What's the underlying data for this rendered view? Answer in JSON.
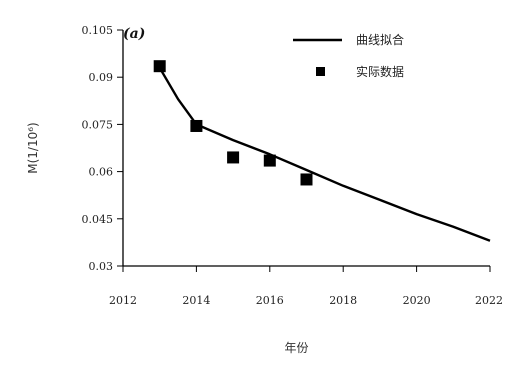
{
  "chart_data": {
    "type": "line",
    "panel_label": "(a)",
    "xlabel": "年份",
    "ylabel": "M(1/10⁶)",
    "xlim": [
      2012,
      2022
    ],
    "ylim": [
      0.03,
      0.105
    ],
    "x_ticks": [
      2012,
      2014,
      2016,
      2018,
      2020,
      2022
    ],
    "y_ticks": [
      0.03,
      0.045,
      0.06,
      0.075,
      0.09,
      0.105
    ],
    "x_tick_labels": [
      "2012",
      "2014",
      "2016",
      "2018",
      "2020",
      "2022"
    ],
    "y_tick_labels": [
      "0.03",
      "0.045",
      "0.06",
      "0.075",
      "0.09",
      "0.105"
    ],
    "legend": {
      "position": "top-right"
    },
    "series": [
      {
        "name": "曲线拟合",
        "style": "line",
        "color": "#000000",
        "x": [
          2013,
          2013.5,
          2014,
          2015,
          2016,
          2017,
          2018,
          2019,
          2020,
          2021,
          2022
        ],
        "y": [
          0.093,
          0.083,
          0.075,
          0.07,
          0.0655,
          0.0605,
          0.0555,
          0.051,
          0.0465,
          0.0425,
          0.038
        ]
      },
      {
        "name": "实际数据",
        "style": "scatter",
        "color": "#000000",
        "x": [
          2013,
          2014,
          2015,
          2016,
          2017
        ],
        "y": [
          0.0935,
          0.0745,
          0.0645,
          0.0635,
          0.0575
        ]
      }
    ]
  }
}
